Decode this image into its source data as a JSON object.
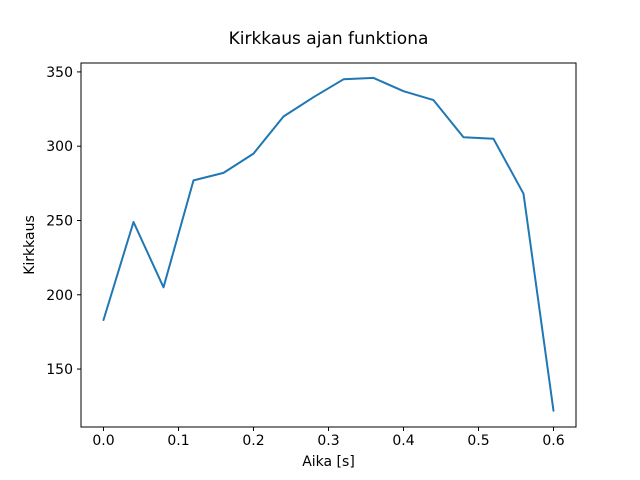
{
  "chart_data": {
    "type": "line",
    "title": "Kirkkaus ajan funktiona",
    "xlabel": "Aika [s]",
    "ylabel": "Kirkkaus",
    "x": [
      0.0,
      0.04,
      0.08,
      0.12,
      0.16,
      0.2,
      0.24,
      0.28,
      0.32,
      0.36,
      0.4,
      0.44,
      0.48,
      0.52,
      0.56,
      0.6
    ],
    "y": [
      183,
      249,
      205,
      277,
      282,
      295,
      320,
      333,
      345,
      346,
      337,
      331,
      306,
      305,
      268,
      122
    ],
    "line_color": "#1f77b4",
    "background_color": "#ffffff",
    "axis_color": "#000000",
    "xlim": [
      -0.03,
      0.63
    ],
    "ylim": [
      111,
      356
    ],
    "xtick_values": [
      0.0,
      0.1,
      0.2,
      0.3,
      0.4,
      0.5,
      0.6
    ],
    "xtick_labels": [
      "0.0",
      "0.1",
      "0.2",
      "0.3",
      "0.4",
      "0.5",
      "0.6"
    ],
    "ytick_values": [
      150,
      200,
      250,
      300,
      350
    ],
    "ytick_labels": [
      "150",
      "200",
      "250",
      "300",
      "350"
    ],
    "grid": false,
    "legend": "none"
  }
}
